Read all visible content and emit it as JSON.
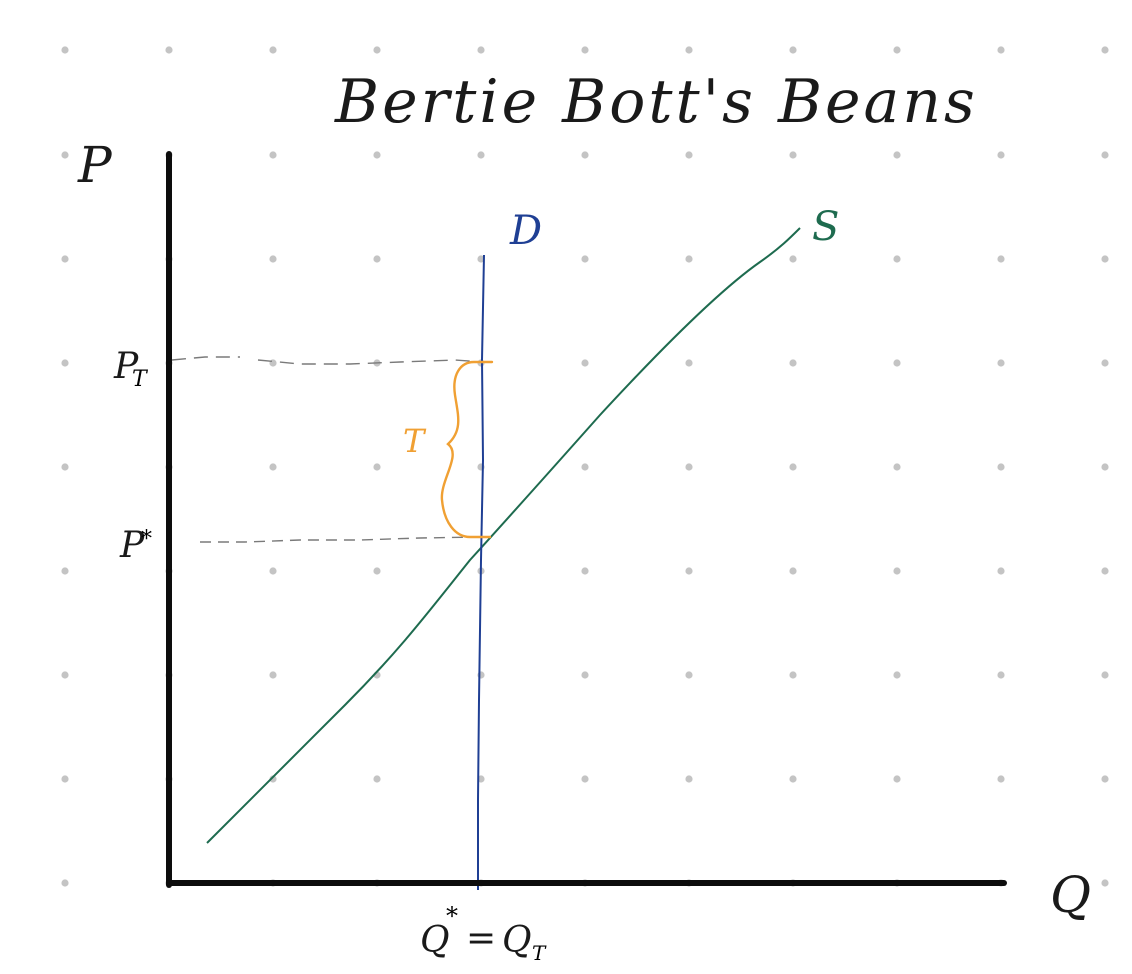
{
  "title": "Bertie Bott's Beans",
  "axes": {
    "y_label": "P",
    "x_label": "Q"
  },
  "price_ticks": {
    "p_tax": "P_T",
    "p_tax_main": "P",
    "p_tax_sub": "T",
    "p_star": "P*",
    "p_star_main": "P",
    "p_star_sup": "*"
  },
  "quantity_tick": {
    "text": "Q* = Q_T",
    "q_main": "Q",
    "q_sup": "*",
    "equals": "=",
    "qt_main": "Q",
    "qt_sub": "T"
  },
  "curves": {
    "demand_label": "D",
    "supply_label": "S"
  },
  "tax_label": "T",
  "colors": {
    "axis": "#0d0d0d",
    "demand": "#1f3f94",
    "supply": "#1e6b4f",
    "tax": "#f0a033",
    "guide": "#7a7a7a",
    "grid_dot": "#c4c4c4"
  },
  "chart_data": {
    "type": "line",
    "title": "Bertie Bott's Beans",
    "xlabel": "Q",
    "ylabel": "P",
    "series": [
      {
        "name": "D",
        "kind": "vertical",
        "x": "Q* = Q_T"
      },
      {
        "name": "S",
        "kind": "upward-sloping"
      }
    ],
    "annotations": [
      "P_T",
      "P*",
      "T",
      "Q* = Q_T"
    ]
  }
}
